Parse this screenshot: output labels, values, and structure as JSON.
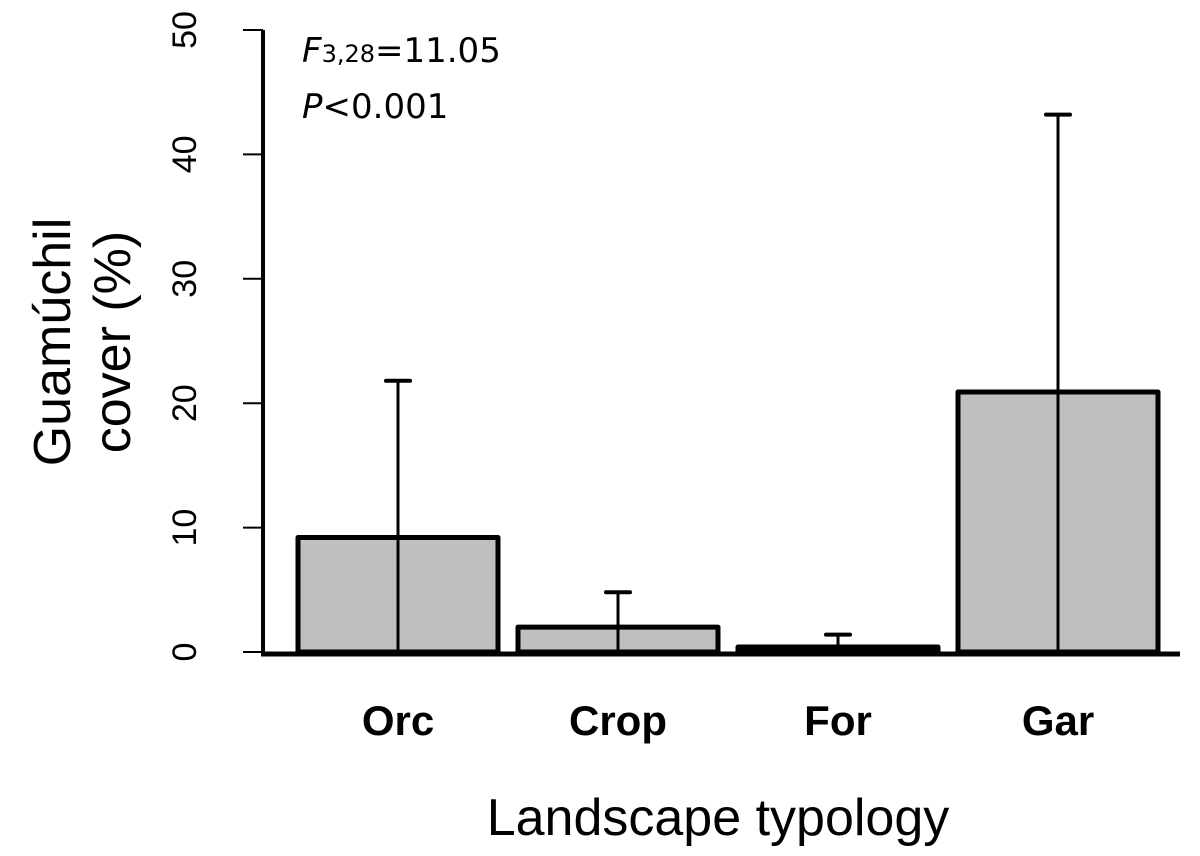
{
  "chart_data": {
    "type": "bar",
    "title": "",
    "categories": [
      "Orc",
      "Crop",
      "For",
      "Gar"
    ],
    "values": [
      9.2,
      2.0,
      0.4,
      20.9
    ],
    "error_upper": [
      21.8,
      4.8,
      1.4,
      43.2
    ],
    "xlabel": "Landscape typology",
    "ylabel_lines": [
      "Guamúchil",
      "cover (%)"
    ],
    "ylim": [
      0,
      50
    ],
    "yticks": [
      0,
      10,
      20,
      30,
      40,
      50
    ],
    "grid": false,
    "bar_color": "#bfbfbf",
    "edge_color": "#000000",
    "annotation": {
      "stat_letter": "F",
      "stat_df": "3,28",
      "stat_value": "=11.05",
      "p_letter": "P",
      "p_value": "<0.001"
    }
  }
}
